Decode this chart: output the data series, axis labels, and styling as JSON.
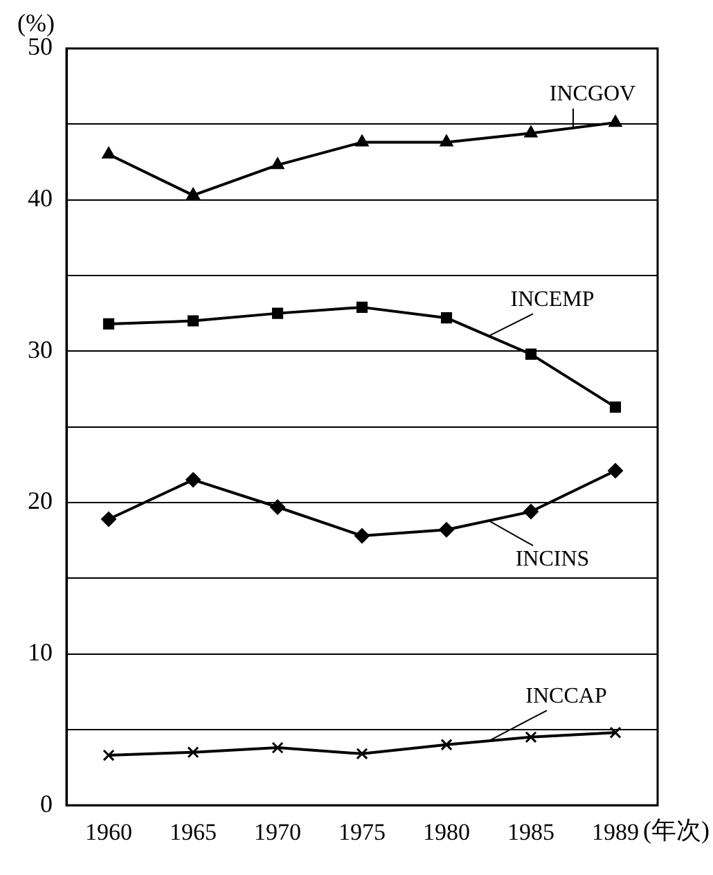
{
  "chart_data": {
    "type": "line",
    "ylabel": "(%)",
    "xlabel": "(年次)",
    "categories": [
      "1960",
      "1965",
      "1970",
      "1975",
      "1980",
      "1985",
      "1989"
    ],
    "ylim": [
      0,
      50
    ],
    "yticks": [
      0,
      {
        "value": 5,
        "label": null
      },
      10,
      {
        "value": 15,
        "label": null
      },
      20,
      {
        "value": 25,
        "label": null
      },
      30,
      {
        "value": 35,
        "label": null
      },
      40,
      {
        "value": 45,
        "label": null
      },
      50
    ],
    "grid": "y",
    "line_style": "solid",
    "series": [
      {
        "name": "INCGOV",
        "color": "#000000",
        "marker": "triangle",
        "values": [
          43.0,
          40.3,
          42.3,
          43.8,
          43.8,
          44.4,
          45.1
        ]
      },
      {
        "name": "INCEMP",
        "color": "#000000",
        "marker": "square",
        "values": [
          31.8,
          32.0,
          32.5,
          32.9,
          32.2,
          29.8,
          26.3
        ]
      },
      {
        "name": "INCINS",
        "color": "#000000",
        "marker": "diamond",
        "values": [
          18.9,
          21.5,
          19.7,
          17.8,
          18.2,
          19.4,
          22.1
        ]
      },
      {
        "name": "INCCAP",
        "color": "#000000",
        "marker": "cross",
        "values": [
          3.3,
          3.5,
          3.8,
          3.4,
          4.0,
          4.5,
          4.8
        ]
      }
    ]
  }
}
